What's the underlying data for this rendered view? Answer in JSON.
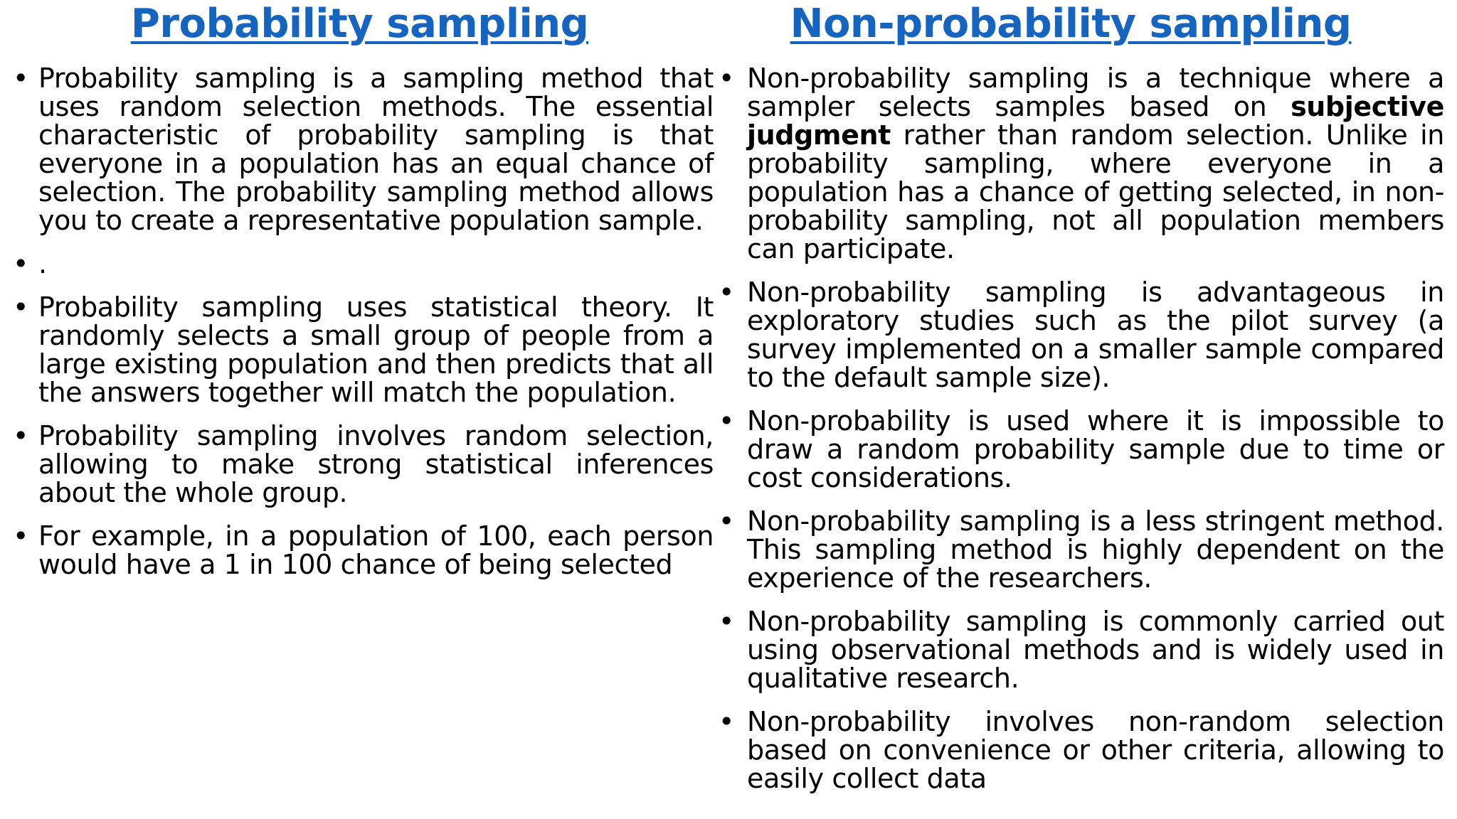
{
  "left": {
    "title": "Probability sampling",
    "bullets": [
      "Probability sampling is a sampling method that uses random selection methods. The essential characteristic of probability sampling is that everyone in a population has an equal chance of selection. The probability sampling method allows you to create a representative population sample.",
      ".",
      "Probability sampling uses statistical theory. It randomly selects a small group of people from a large existing population and then predicts that all the answers together will match the population.",
      "Probability sampling involves random selection, allowing to make strong statistical inferences about the whole group.",
      "For example, in a population of 100, each person would have a 1 in 100 chance of being selected"
    ]
  },
  "right": {
    "title": "Non-probability sampling",
    "bullet1": {
      "before": "Non-probability sampling is a technique where a sampler selects samples based on ",
      "bold": "subjective judgment",
      "after": " rather than random selection. Unlike in probability sampling, where everyone in a population has a chance of getting selected, in non-probability sampling, not all population members can participate."
    },
    "bullets": [
      "Non-probability sampling is advantageous in exploratory studies such as the pilot survey (a survey implemented on a smaller sample compared to the default sample size).",
      "Non-probability is used where it is impossible to draw a random probability sample due to time or cost considerations.",
      "Non-probability sampling is a less stringent method. This sampling method is highly dependent on the experience of the researchers.",
      "Non-probability sampling is commonly carried out using observational methods and is widely used in qualitative research.",
      "Non-probability involves non-random selection based on convenience or other criteria, allowing to easily collect data"
    ]
  },
  "colors": {
    "heading": "#1565C0",
    "text": "#000000"
  }
}
